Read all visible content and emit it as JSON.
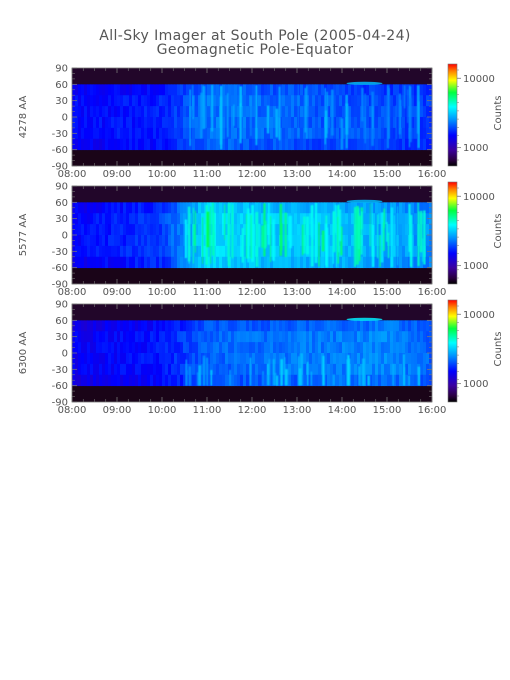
{
  "chart_data": {
    "type": "heatmap",
    "title": "All-Sky Imager at South Pole (2005-04-24)",
    "subtitle": "Geomagnetic Pole-Equator",
    "x_tick_labels": [
      "08:00",
      "09:00",
      "10:00",
      "11:00",
      "12:00",
      "13:00",
      "14:00",
      "15:00",
      "16:00"
    ],
    "y_tick_labels": [
      "90",
      "60",
      "30",
      "0",
      "-30",
      "-60",
      "-90"
    ],
    "xlim": [
      "08:00",
      "16:00"
    ],
    "ylim": [
      -90,
      90
    ],
    "colorbar": {
      "label": "Counts",
      "tick_labels": [
        "10000",
        "1000"
      ],
      "scale": "log",
      "colormap": "rainbow"
    },
    "panels": [
      {
        "ylabel": "4278 AA",
        "data_lat_range": [
          -60,
          60
        ],
        "intensity_profile": [
          {
            "time": "08:00",
            "level": 0.3
          },
          {
            "time": "10:00",
            "level": 0.33
          },
          {
            "time": "11:00",
            "level": 0.42
          },
          {
            "time": "13:00",
            "level": 0.4
          },
          {
            "time": "16:00",
            "level": 0.36
          }
        ]
      },
      {
        "ylabel": "5577 AA",
        "data_lat_range": [
          -60,
          60
        ],
        "intensity_profile": [
          {
            "time": "08:00",
            "level": 0.3
          },
          {
            "time": "10:00",
            "level": 0.36
          },
          {
            "time": "11:00",
            "level": 0.55
          },
          {
            "time": "12:00",
            "level": 0.52
          },
          {
            "time": "14:00",
            "level": 0.5
          },
          {
            "time": "16:00",
            "level": 0.45
          }
        ]
      },
      {
        "ylabel": "6300 AA",
        "data_lat_range": [
          -60,
          60
        ],
        "intensity_profile": [
          {
            "time": "08:00",
            "level": 0.28
          },
          {
            "time": "10:00",
            "level": 0.32
          },
          {
            "time": "11:00",
            "level": 0.4
          },
          {
            "time": "13:00",
            "level": 0.42
          },
          {
            "time": "15:00",
            "level": 0.44
          },
          {
            "time": "16:00",
            "level": 0.4
          }
        ]
      }
    ]
  }
}
